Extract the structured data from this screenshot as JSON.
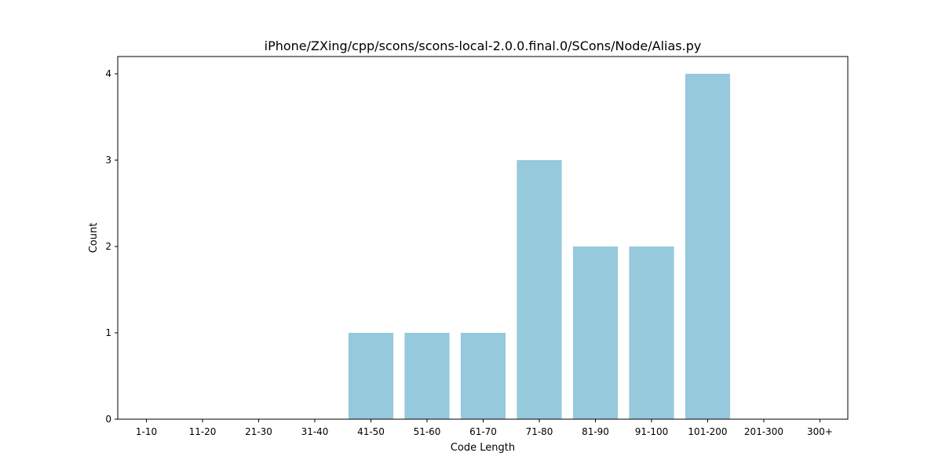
{
  "chart_data": {
    "type": "bar",
    "title": "iPhone/ZXing/cpp/scons/scons-local-2.0.0.final.0/SCons/Node/Alias.py",
    "xlabel": "Code Length",
    "ylabel": "Count",
    "categories": [
      "1-10",
      "11-20",
      "21-30",
      "31-40",
      "41-50",
      "51-60",
      "61-70",
      "71-80",
      "81-90",
      "91-100",
      "101-200",
      "201-300",
      "300+"
    ],
    "values": [
      0,
      0,
      0,
      0,
      1,
      1,
      1,
      3,
      2,
      2,
      4,
      0,
      0
    ],
    "ylim": [
      0,
      4.2
    ],
    "yticks": [
      0,
      1,
      2,
      3,
      4
    ],
    "bar_color": "#96c9dc",
    "grid": false,
    "legend": "none"
  }
}
